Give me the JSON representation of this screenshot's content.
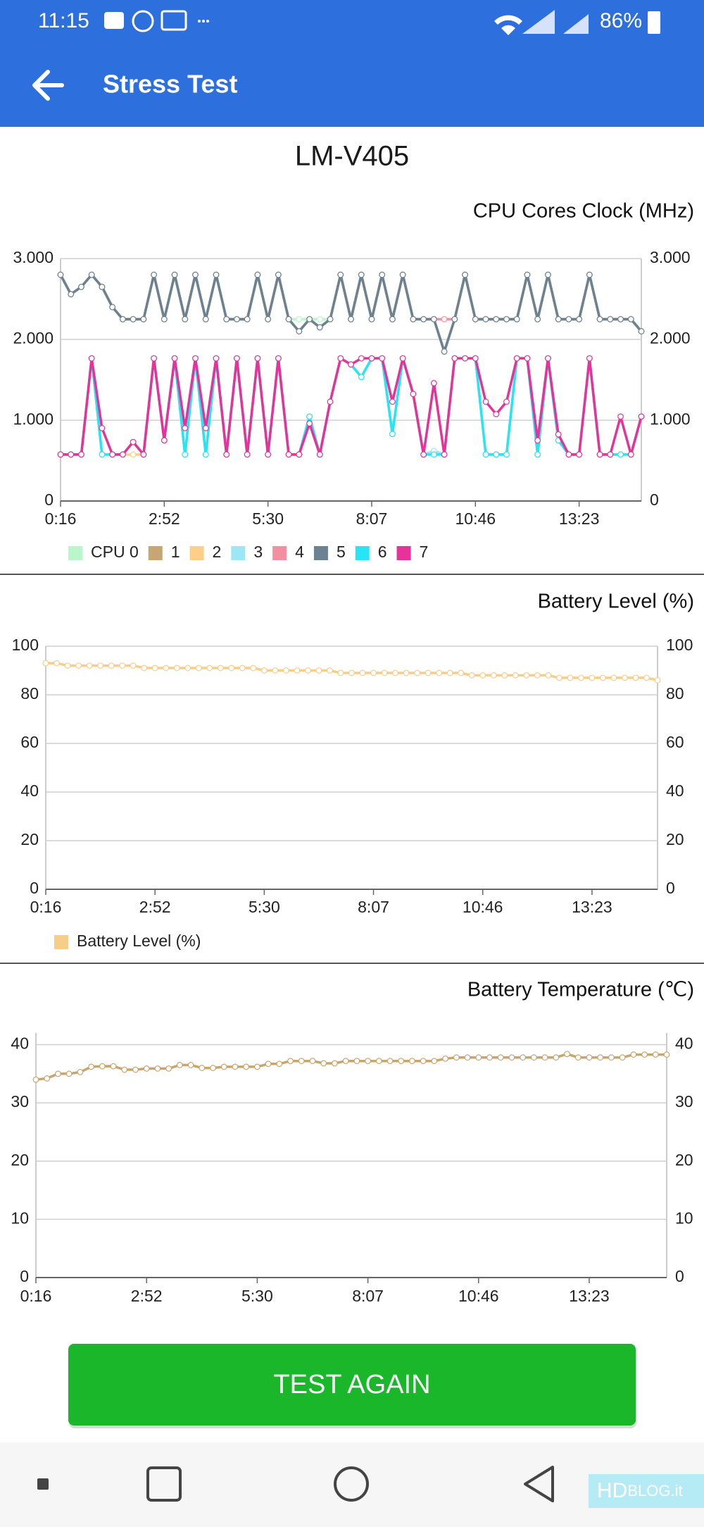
{
  "status_bar": {
    "time": "11:15",
    "battery": "86%"
  },
  "app_bar": {
    "title": "Stress Test"
  },
  "device": "LM-V405",
  "chart_data": [
    {
      "type": "line",
      "title": "CPU Cores Clock (MHz)",
      "categories": [
        "0:16",
        null,
        null,
        null,
        null,
        null,
        null,
        null,
        null,
        null,
        "2:52",
        null,
        null,
        null,
        null,
        null,
        null,
        null,
        null,
        null,
        "5:30",
        null,
        null,
        null,
        null,
        null,
        null,
        null,
        null,
        null,
        "8:07",
        null,
        null,
        null,
        null,
        null,
        null,
        null,
        null,
        null,
        "10:46",
        null,
        null,
        null,
        null,
        null,
        null,
        null,
        null,
        null,
        "13:23",
        null,
        null,
        null,
        null,
        null,
        null
      ],
      "ylim": [
        0,
        3000
      ],
      "yticks": [
        0,
        {
          "value": 1000,
          "label": "1.000"
        },
        {
          "value": 2000,
          "label": "2.000"
        },
        {
          "value": 3000,
          "label": "3.000"
        }
      ],
      "grid": true,
      "legend": "bottom-left",
      "series": [
        {
          "name": "CPU 0",
          "color": "#b9f6ca",
          "values": [
            2800,
            2560,
            2650,
            2800,
            2650,
            2400,
            2250,
            2250,
            2250,
            2800,
            2250,
            2800,
            2250,
            2800,
            2250,
            2800,
            2250,
            2250,
            2250,
            2800,
            2250,
            2800,
            2250,
            2250,
            2250,
            2250,
            2250,
            2800,
            2250,
            2800,
            2250,
            2800,
            2250,
            2800,
            2250,
            2250,
            2250,
            1850,
            2250,
            2800,
            2250,
            2250,
            2250,
            2250,
            2250,
            2800,
            2250,
            2800,
            2250,
            2250,
            2250,
            2800,
            2250,
            2250,
            2250,
            2250,
            2100
          ]
        },
        {
          "name": "1",
          "color": "#c8a674",
          "values": [
            2800,
            2560,
            2650,
            2800,
            2650,
            2400,
            2250,
            2250,
            2250,
            2800,
            2250,
            2800,
            2250,
            2800,
            2250,
            2800,
            2250,
            2250,
            2250,
            2800,
            2250,
            2800,
            2250,
            2100,
            2250,
            2150,
            2250,
            2800,
            2250,
            2800,
            2250,
            2800,
            2250,
            2800,
            2250,
            2250,
            2250,
            1850,
            2250,
            2800,
            2250,
            2250,
            2250,
            2250,
            2250,
            2800,
            2250,
            2800,
            2250,
            2250,
            2250,
            2800,
            2250,
            2250,
            2250,
            2250,
            2100
          ]
        },
        {
          "name": "2",
          "color": "#ffcf8a",
          "values": [
            576,
            576,
            576,
            1766,
            576,
            576,
            576,
            576,
            576,
            1766,
            750,
            1766,
            576,
            1766,
            576,
            1766,
            576,
            1766,
            576,
            1766,
            576,
            1766,
            576,
            576,
            1045,
            576,
            1229,
            1766,
            1690,
            1535,
            1766,
            1766,
            830,
            1766,
            1325,
            576,
            620,
            576,
            1766,
            1766,
            1766,
            576,
            576,
            576,
            1766,
            1766,
            576,
            1766,
            750,
            576,
            576,
            1766,
            576,
            576,
            576,
            576,
            1045
          ]
        },
        {
          "name": "3",
          "color": "#9be7f5",
          "values": [
            576,
            576,
            576,
            1766,
            576,
            576,
            576,
            730,
            576,
            1766,
            750,
            1766,
            576,
            1766,
            576,
            1766,
            576,
            1766,
            576,
            1766,
            576,
            1766,
            576,
            576,
            1045,
            576,
            1229,
            1766,
            1690,
            1535,
            1766,
            1766,
            830,
            1766,
            1325,
            576,
            620,
            576,
            1766,
            1766,
            1766,
            576,
            576,
            576,
            1766,
            1766,
            576,
            1766,
            750,
            576,
            576,
            1766,
            576,
            576,
            576,
            576,
            1045
          ]
        },
        {
          "name": "4",
          "color": "#f48fa1",
          "values": [
            2800,
            2560,
            2650,
            2800,
            2650,
            2400,
            2250,
            2250,
            2250,
            2800,
            2250,
            2800,
            2250,
            2800,
            2250,
            2800,
            2250,
            2250,
            2250,
            2800,
            2250,
            2800,
            2250,
            2100,
            2250,
            2150,
            2250,
            2800,
            2250,
            2800,
            2250,
            2800,
            2250,
            2800,
            2250,
            2250,
            2250,
            2250,
            2250,
            2800,
            2250,
            2250,
            2250,
            2250,
            2250,
            2800,
            2250,
            2800,
            2250,
            2250,
            2250,
            2800,
            2250,
            2250,
            2250,
            2250,
            2100
          ]
        },
        {
          "name": "5",
          "color": "#6a8291",
          "values": [
            2800,
            2560,
            2650,
            2800,
            2650,
            2400,
            2250,
            2250,
            2250,
            2800,
            2250,
            2800,
            2250,
            2800,
            2250,
            2800,
            2250,
            2250,
            2250,
            2800,
            2250,
            2800,
            2250,
            2100,
            2250,
            2150,
            2250,
            2800,
            2250,
            2800,
            2250,
            2800,
            2250,
            2800,
            2250,
            2250,
            2250,
            1850,
            2250,
            2800,
            2250,
            2250,
            2250,
            2250,
            2250,
            2800,
            2250,
            2800,
            2250,
            2250,
            2250,
            2800,
            2250,
            2250,
            2250,
            2250,
            2100
          ]
        },
        {
          "name": "6",
          "color": "#26e5f5",
          "values": [
            576,
            576,
            576,
            1766,
            576,
            576,
            576,
            730,
            576,
            1766,
            750,
            1766,
            576,
            1766,
            576,
            1766,
            576,
            1766,
            576,
            1766,
            576,
            1766,
            576,
            576,
            1045,
            576,
            1229,
            1766,
            1690,
            1535,
            1766,
            1766,
            830,
            1766,
            1325,
            576,
            576,
            576,
            1766,
            1766,
            1766,
            576,
            576,
            576,
            1766,
            1766,
            576,
            1766,
            750,
            576,
            576,
            1766,
            576,
            576,
            576,
            576,
            1045
          ]
        },
        {
          "name": "7",
          "color": "#e6329a",
          "values": [
            576,
            576,
            576,
            1766,
            902,
            576,
            576,
            730,
            576,
            1766,
            750,
            1766,
            902,
            1766,
            902,
            1766,
            576,
            1766,
            576,
            1766,
            576,
            1766,
            576,
            576,
            960,
            576,
            1229,
            1766,
            1690,
            1766,
            1766,
            1766,
            1229,
            1766,
            1325,
            576,
            1459,
            576,
            1766,
            1766,
            1766,
            1229,
            1075,
            1229,
            1766,
            1766,
            750,
            1766,
            825,
            576,
            576,
            1766,
            576,
            576,
            1045,
            576,
            1045
          ]
        }
      ]
    },
    {
      "type": "line",
      "title": "Battery Level (%)",
      "categories": [
        "0:16",
        null,
        null,
        null,
        null,
        null,
        null,
        null,
        null,
        null,
        "2:52",
        null,
        null,
        null,
        null,
        null,
        null,
        null,
        null,
        null,
        "5:30",
        null,
        null,
        null,
        null,
        null,
        null,
        null,
        null,
        null,
        "8:07",
        null,
        null,
        null,
        null,
        null,
        null,
        null,
        null,
        null,
        "10:46",
        null,
        null,
        null,
        null,
        null,
        null,
        null,
        null,
        null,
        "13:23",
        null,
        null,
        null,
        null,
        null,
        null
      ],
      "ylim": [
        0,
        100
      ],
      "yticks": [
        0,
        20,
        40,
        60,
        80,
        100
      ],
      "grid": true,
      "legend": "bottom-left",
      "series": [
        {
          "name": "Battery Level (%)",
          "color": "#f7cd8a",
          "values": [
            93,
            93,
            92,
            92,
            92,
            92,
            92,
            92,
            92,
            91,
            91,
            91,
            91,
            91,
            91,
            91,
            91,
            91,
            91,
            91,
            90,
            90,
            90,
            90,
            90,
            90,
            90,
            89,
            89,
            89,
            89,
            89,
            89,
            89,
            89,
            89,
            89,
            89,
            89,
            88,
            88,
            88,
            88,
            88,
            88,
            88,
            88,
            87,
            87,
            87,
            87,
            87,
            87,
            87,
            87,
            87,
            86
          ]
        }
      ]
    },
    {
      "type": "line",
      "title": "Battery Temperature (℃)",
      "categories": [
        "0:16",
        null,
        null,
        null,
        null,
        null,
        null,
        null,
        null,
        null,
        "2:52",
        null,
        null,
        null,
        null,
        null,
        null,
        null,
        null,
        null,
        "5:30",
        null,
        null,
        null,
        null,
        null,
        null,
        null,
        null,
        null,
        "8:07",
        null,
        null,
        null,
        null,
        null,
        null,
        null,
        null,
        null,
        "10:46",
        null,
        null,
        null,
        null,
        null,
        null,
        null,
        null,
        null,
        "13:23",
        null,
        null,
        null,
        null,
        null,
        null,
        null
      ],
      "ylim": [
        0,
        42
      ],
      "yticks": [
        0,
        10,
        20,
        30,
        40
      ],
      "grid": true,
      "series": [
        {
          "color": "#c9a56e",
          "values": [
            34,
            34.2,
            35,
            35,
            35.3,
            36.2,
            36.3,
            36.3,
            35.7,
            35.7,
            35.9,
            35.9,
            35.9,
            36.5,
            36.5,
            36,
            36,
            36.2,
            36.2,
            36.2,
            36.2,
            36.7,
            36.7,
            37.2,
            37.2,
            37.2,
            36.8,
            36.8,
            37.2,
            37.2,
            37.2,
            37.2,
            37.2,
            37.2,
            37.2,
            37.2,
            37.2,
            37.6,
            37.8,
            37.8,
            37.8,
            37.8,
            37.8,
            37.8,
            37.8,
            37.8,
            37.8,
            37.8,
            38.4,
            37.8,
            37.8,
            37.8,
            37.8,
            37.8,
            38.3,
            38.3,
            38.3,
            38.3
          ]
        }
      ]
    }
  ],
  "button": {
    "label": "TEST AGAIN"
  },
  "watermark": {
    "brand": "HD",
    "suffix": "BLOG.it"
  }
}
